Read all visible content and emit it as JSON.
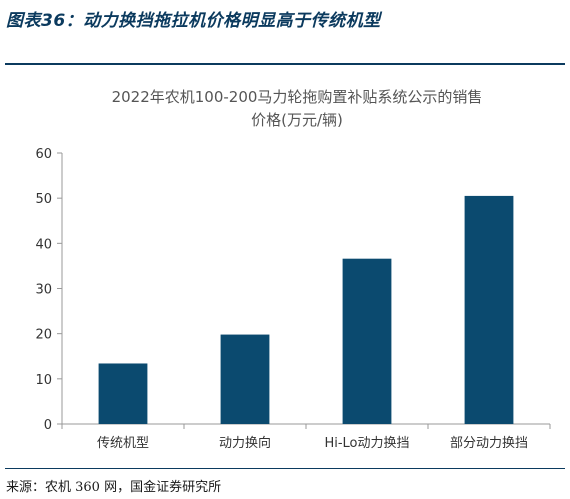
{
  "figure": {
    "title": "图表36：动力换挡拖拉机价格明显高于传统机型",
    "source": "来源：农机 360 网，国金证券研究所"
  },
  "chart_data": {
    "type": "bar",
    "title_lines": [
      "2022年农机100-200马力轮拖购置补贴系统公示的销售",
      "价格(万元/辆)"
    ],
    "categories": [
      "传统机型",
      "动力换向",
      "Hi-Lo动力换挡",
      "部分动力换挡"
    ],
    "values": [
      13.4,
      19.8,
      36.6,
      50.5
    ],
    "ylim": [
      0,
      60
    ],
    "yticks": [
      0,
      10,
      20,
      30,
      40,
      50,
      60
    ],
    "bar_color": "#0b4a6f",
    "grid": false,
    "legend": "none"
  }
}
